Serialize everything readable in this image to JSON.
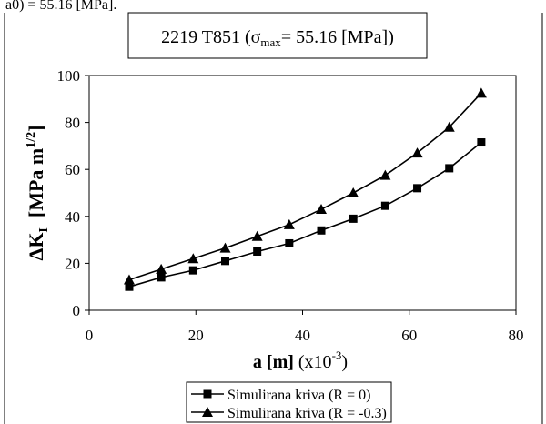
{
  "header_fragment": "a0) = 55.16 [MPa].",
  "chart_data": {
    "type": "line",
    "title_prefix": "2219 T851 (",
    "title_sigma": "σ",
    "title_sub": "max",
    "title_suffix": "= 55.16 [MPa])",
    "xlabel_bold": "a [m]",
    "xlabel_rest": " (x10",
    "xlabel_exp": "-3",
    "xlabel_close": ")",
    "ylabel_bold": "ΔK",
    "ylabel_sub": "I",
    "ylabel_units": "[MPa m",
    "ylabel_exp": "1/2",
    "ylabel_close": "]",
    "xlim": [
      0,
      80
    ],
    "ylim": [
      0,
      100
    ],
    "xticks": [
      "0",
      "20",
      "40",
      "60",
      "80"
    ],
    "yticks": [
      "0",
      "20",
      "40",
      "60",
      "80",
      "100"
    ],
    "grid": false,
    "legend_position": "bottom",
    "series": [
      {
        "name": "Simulirana kriva (R = 0)",
        "marker": "square",
        "color": "#000000",
        "x": [
          7.5,
          13.5,
          19.5,
          25.5,
          31.5,
          37.5,
          43.5,
          49.5,
          55.5,
          61.5,
          67.5,
          73.5
        ],
        "y": [
          10,
          14,
          17,
          21,
          25,
          28.5,
          34,
          39,
          44.5,
          52,
          60.5,
          71.5
        ]
      },
      {
        "name": "Simulirana kriva (R = -0.3)",
        "marker": "triangle",
        "color": "#000000",
        "x": [
          7.5,
          13.5,
          19.5,
          25.5,
          31.5,
          37.5,
          43.5,
          49.5,
          55.5,
          61.5,
          67.5,
          73.5
        ],
        "y": [
          13,
          17.5,
          22,
          26.5,
          31.5,
          36.5,
          43,
          50,
          57.5,
          67,
          78,
          92.5
        ]
      }
    ]
  }
}
